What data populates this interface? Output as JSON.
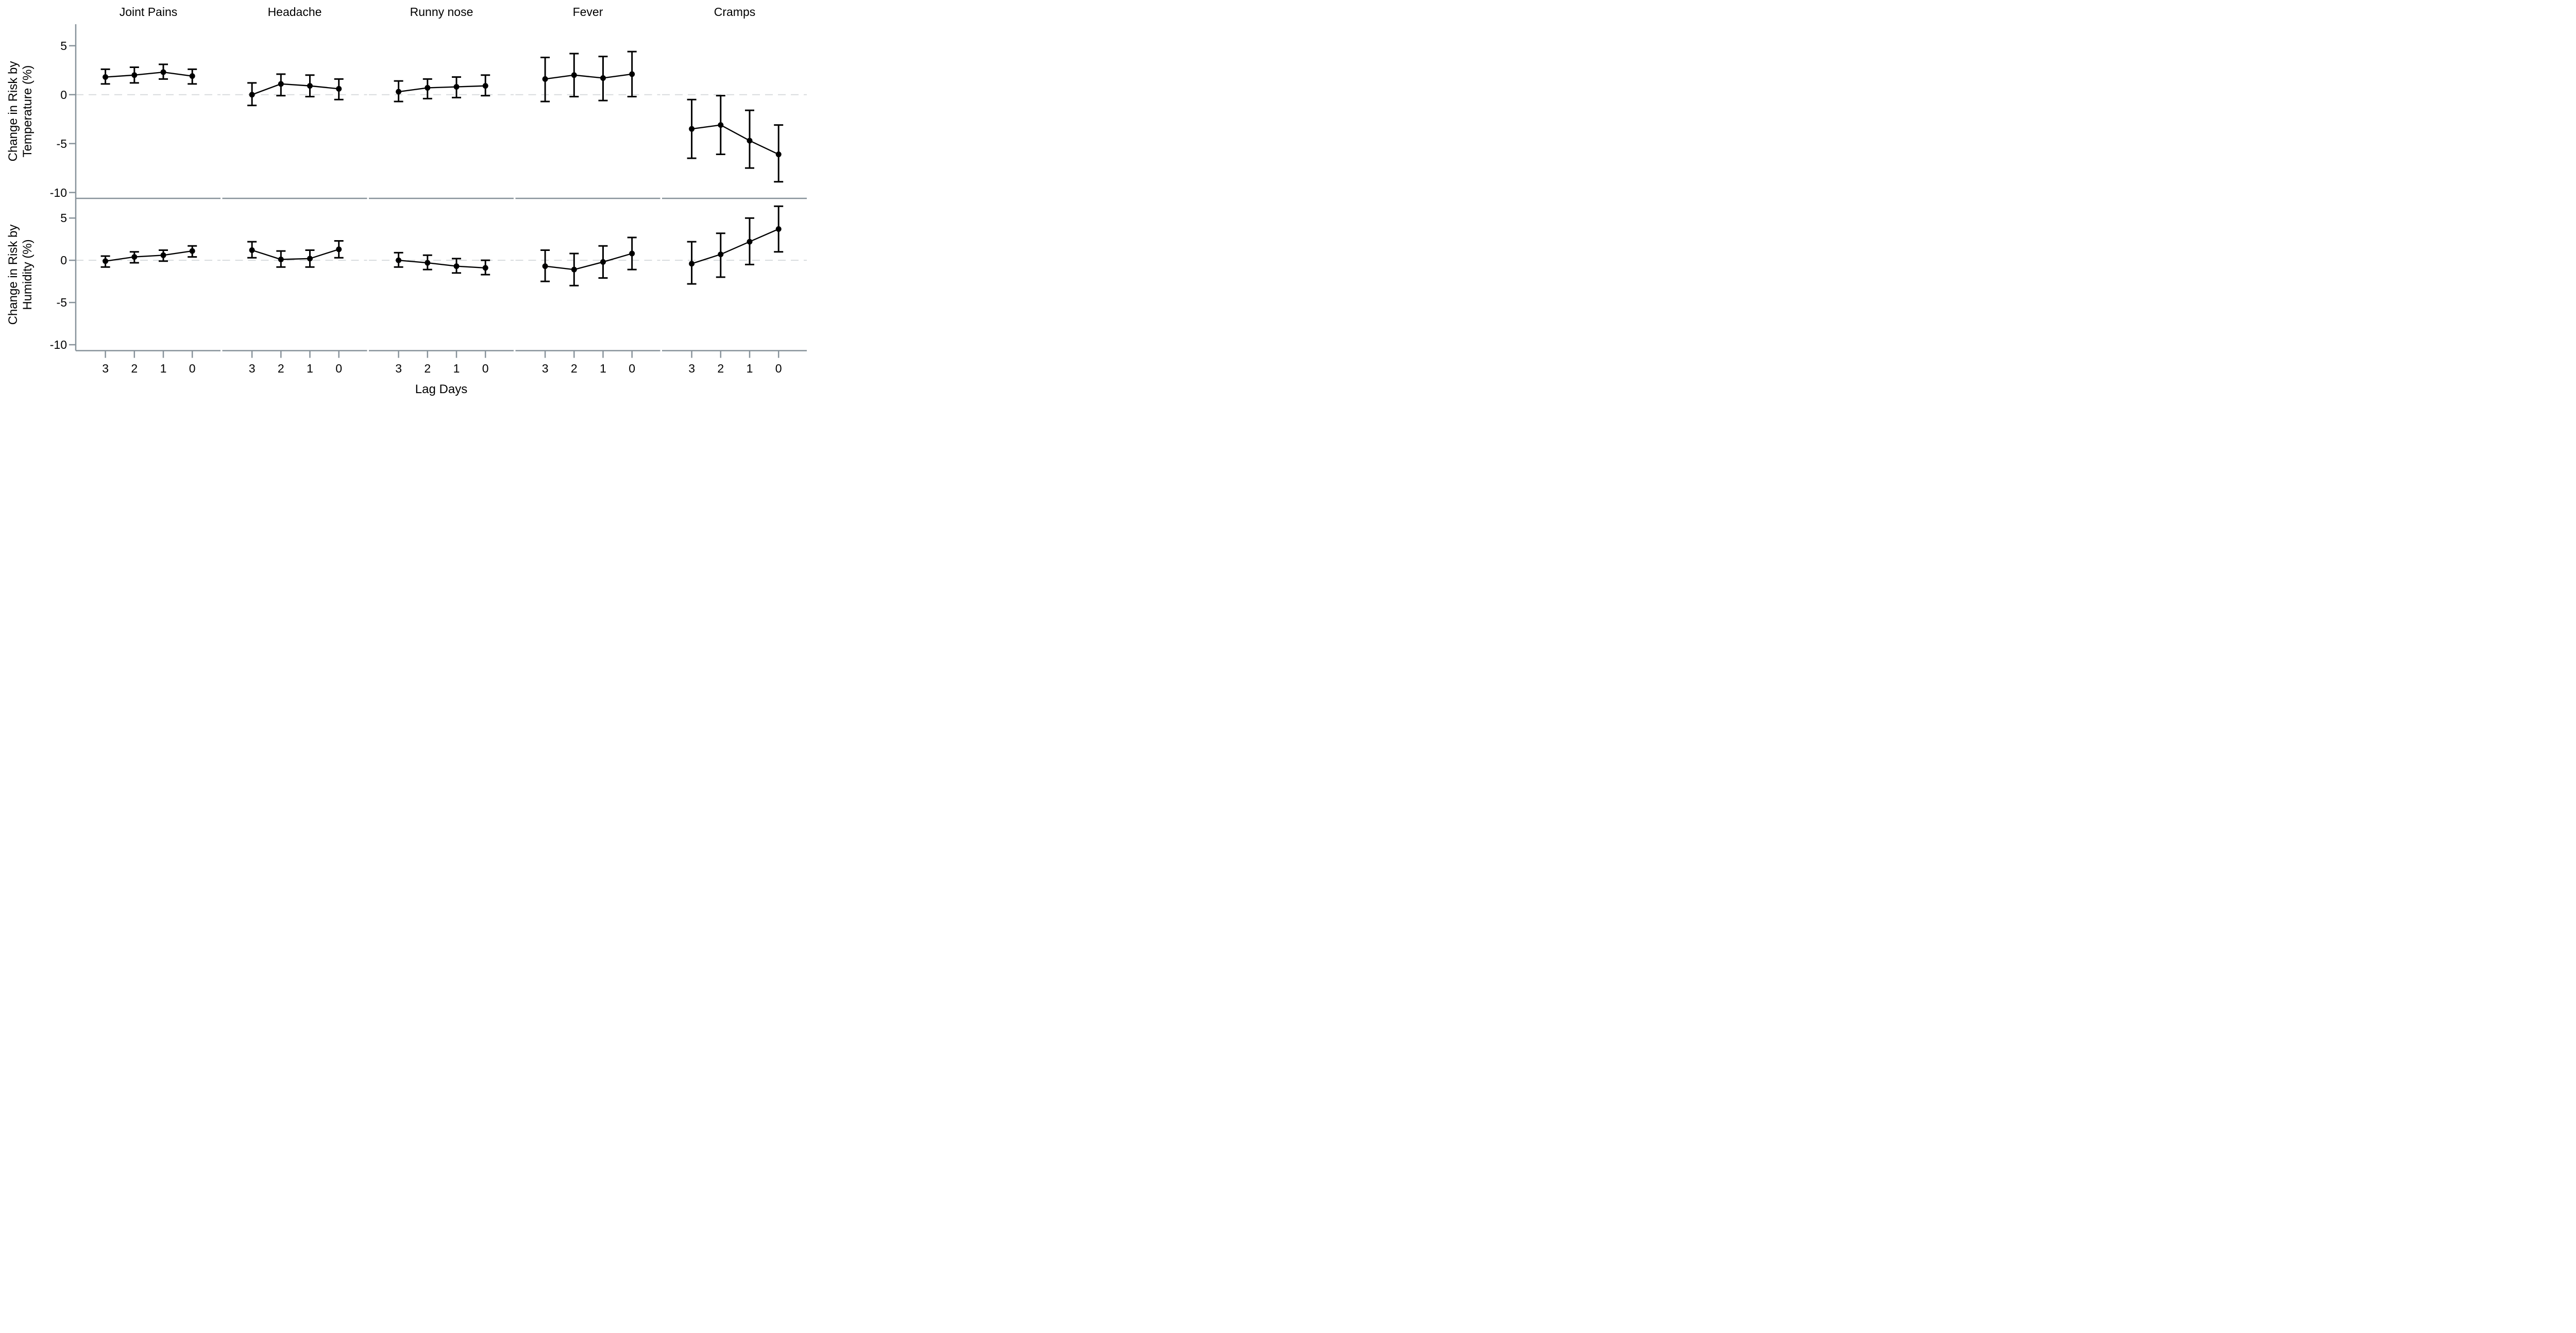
{
  "chart_data": {
    "type": "line",
    "description": "Faceted point-and-error-bar plot: change in symptom risk (%) vs lag days, for temperature (top row) and humidity (bottom row).",
    "x": [
      3,
      2,
      1,
      0
    ],
    "x_tick_labels": [
      "3",
      "2",
      "1",
      "0"
    ],
    "xlabel": "Lag Days",
    "y_ticks": [
      5,
      0,
      -5,
      -10
    ],
    "grid": "dashed reference line at y=0 only",
    "legend_position": "none",
    "facets": {
      "columns": [
        "Joint Pains",
        "Headache",
        "Runny nose",
        "Fever",
        "Cramps"
      ],
      "rows": [
        {
          "label_line1": "Change in Risk by",
          "label_line2": "Temperature (%)",
          "ylim": [
            -10.6,
            7.2
          ],
          "series": [
            {
              "facet": "Joint Pains",
              "est": [
                1.8,
                2.0,
                2.3,
                1.9
              ],
              "ci_low": [
                1.1,
                1.2,
                1.6,
                1.1
              ],
              "ci_high": [
                2.6,
                2.8,
                3.1,
                2.6
              ]
            },
            {
              "facet": "Headache",
              "est": [
                0.0,
                1.1,
                0.9,
                0.6
              ],
              "ci_low": [
                -1.1,
                -0.1,
                -0.2,
                -0.5
              ],
              "ci_high": [
                1.2,
                2.1,
                2.0,
                1.6
              ]
            },
            {
              "facet": "Runny nose",
              "est": [
                0.3,
                0.7,
                0.8,
                0.9
              ],
              "ci_low": [
                -0.7,
                -0.4,
                -0.3,
                -0.1
              ],
              "ci_high": [
                1.4,
                1.6,
                1.8,
                2.0
              ]
            },
            {
              "facet": "Fever",
              "est": [
                1.6,
                2.0,
                1.7,
                2.1
              ],
              "ci_low": [
                -0.7,
                -0.2,
                -0.6,
                -0.2
              ],
              "ci_high": [
                3.8,
                4.2,
                3.9,
                4.4
              ]
            },
            {
              "facet": "Cramps",
              "est": [
                -3.5,
                -3.1,
                -4.7,
                -6.1
              ],
              "ci_low": [
                -6.5,
                -6.1,
                -7.5,
                -8.9
              ],
              "ci_high": [
                -0.5,
                -0.1,
                -1.6,
                -3.1
              ]
            }
          ]
        },
        {
          "label_line1": "Change in Risk by",
          "label_line2": "Humidity (%)",
          "ylim": [
            -10.7,
            7.3
          ],
          "series": [
            {
              "facet": "Joint Pains",
              "est": [
                -0.1,
                0.4,
                0.6,
                1.1
              ],
              "ci_low": [
                -0.8,
                -0.3,
                -0.1,
                0.4
              ],
              "ci_high": [
                0.5,
                1.0,
                1.2,
                1.7
              ]
            },
            {
              "facet": "Headache",
              "est": [
                1.2,
                0.1,
                0.2,
                1.3
              ],
              "ci_low": [
                0.3,
                -0.8,
                -0.8,
                0.3
              ],
              "ci_high": [
                2.2,
                1.1,
                1.2,
                2.3
              ]
            },
            {
              "facet": "Runny nose",
              "est": [
                0.0,
                -0.3,
                -0.7,
                -0.9
              ],
              "ci_low": [
                -0.8,
                -1.1,
                -1.5,
                -1.7
              ],
              "ci_high": [
                0.9,
                0.6,
                0.2,
                0.0
              ]
            },
            {
              "facet": "Fever",
              "est": [
                -0.7,
                -1.1,
                -0.2,
                0.8
              ],
              "ci_low": [
                -2.5,
                -3.0,
                -2.1,
                -1.1
              ],
              "ci_high": [
                1.2,
                0.8,
                1.7,
                2.7
              ]
            },
            {
              "facet": "Cramps",
              "est": [
                -0.4,
                0.7,
                2.2,
                3.7
              ],
              "ci_low": [
                -2.8,
                -2.0,
                -0.5,
                1.0
              ],
              "ci_high": [
                2.2,
                3.2,
                5.0,
                6.4
              ]
            }
          ]
        }
      ]
    },
    "colors": {
      "axis": "#87929a",
      "zero_line": "#d8dbdd",
      "data": "#000000",
      "background": "#ffffff"
    }
  }
}
